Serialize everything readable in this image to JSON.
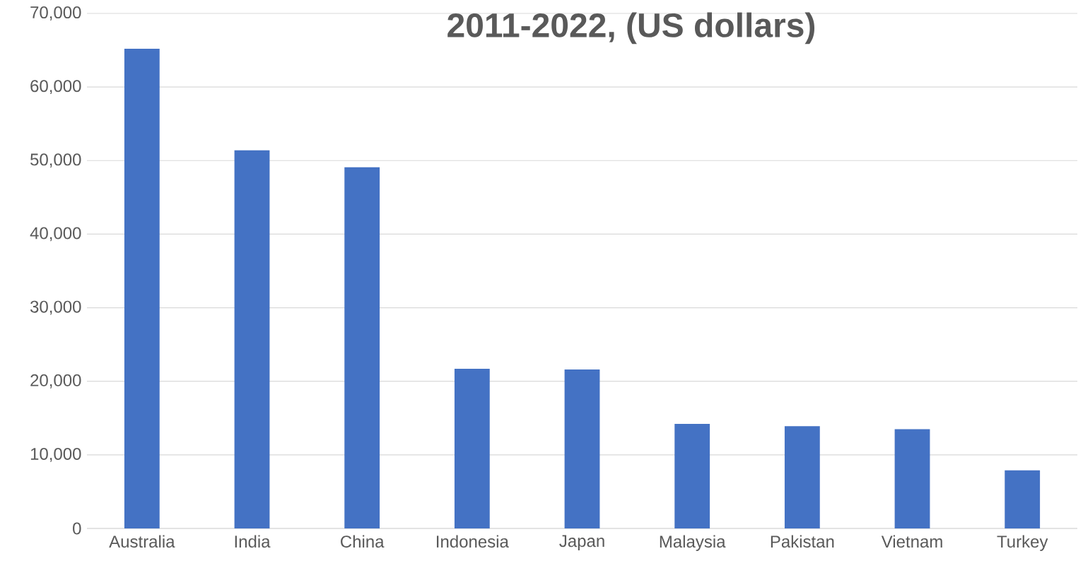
{
  "chart_data": {
    "type": "bar",
    "title": "2011-2022, (US dollars)",
    "categories": [
      "Australia",
      "India",
      "China",
      "Indonesia",
      "Japan",
      "Malaysia",
      "Pakistan",
      "Vietnam",
      "Turkey"
    ],
    "values": [
      65200,
      51400,
      49100,
      21700,
      21600,
      14200,
      13900,
      13500,
      7900
    ],
    "color": "#4472c4",
    "ylim": [
      0,
      70000
    ],
    "yticks": [
      0,
      {
        "value": 10000,
        "label": "10,000"
      },
      {
        "value": 20000,
        "label": "20,000"
      },
      {
        "value": 30000,
        "label": "30,000"
      },
      {
        "value": 40000,
        "label": "40,000"
      },
      {
        "value": 50000,
        "label": "50,000"
      },
      {
        "value": 60000,
        "label": "60,000"
      },
      {
        "value": 70000,
        "label": "70,000"
      }
    ],
    "grid": "y"
  }
}
